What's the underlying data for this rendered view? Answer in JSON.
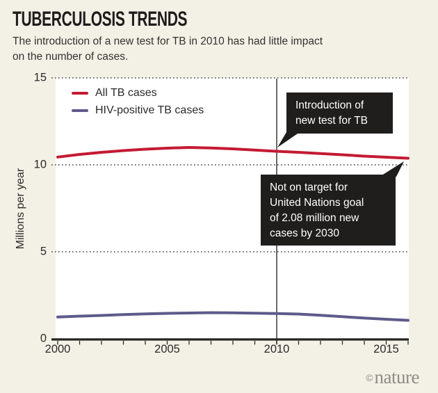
{
  "page": {
    "background": "#f3f1e6",
    "plot_background": "#ffffff"
  },
  "header": {
    "title": "TUBERCULOSIS TRENDS",
    "subtitle": "The introduction of a new test for TB in 2010 has had little impact\non the number of cases."
  },
  "footer": {
    "copyright_symbol": "©",
    "brand_name": "nature"
  },
  "chart_data": {
    "type": "line",
    "title": "TUBERCULOSIS TRENDS",
    "subtitle": "The introduction of a new test for TB in 2010 has had little impact on the number of cases.",
    "xlabel": "",
    "ylabel": "Millions per year",
    "xlim": [
      2000,
      2016
    ],
    "ylim": [
      0,
      15
    ],
    "yticks": [
      0,
      5,
      10,
      15
    ],
    "xticks_major": [
      2000,
      2005,
      2010,
      2015
    ],
    "xticks_minor_step": 1,
    "grid": "horizontal dotted lines at y = 5, 10, 15",
    "legend_position": "top-left inside plot",
    "x": [
      2000,
      2001,
      2002,
      2003,
      2004,
      2005,
      2006,
      2007,
      2008,
      2009,
      2010,
      2011,
      2012,
      2013,
      2014,
      2015,
      2016
    ],
    "series": [
      {
        "name": "All TB cases",
        "color": "#c41a33",
        "values": [
          10.45,
          10.6,
          10.72,
          10.82,
          10.9,
          10.96,
          11.0,
          10.97,
          10.92,
          10.85,
          10.78,
          10.72,
          10.65,
          10.58,
          10.5,
          10.44,
          10.38
        ]
      },
      {
        "name": "HIV-positive TB cases",
        "color": "#5e5a8b",
        "values": [
          1.25,
          1.3,
          1.34,
          1.39,
          1.43,
          1.46,
          1.48,
          1.5,
          1.49,
          1.47,
          1.45,
          1.42,
          1.35,
          1.27,
          1.19,
          1.12,
          1.06
        ]
      }
    ],
    "vline": {
      "x": 2010,
      "color": "#454545",
      "note": "vertical reference line for introduction of new test"
    },
    "annotations": [
      {
        "text": "Introduction of\nnew test for TB",
        "background": "#201d1d",
        "text_color": "#ffffff",
        "points_to": "2010 vertical line"
      },
      {
        "text": "Not on target for\nUnited Nations goal\nof 2.08 million new\ncases by 2030",
        "background": "#201d1d",
        "text_color": "#ffffff",
        "points_to": "2016 end of All TB cases line"
      }
    ]
  }
}
